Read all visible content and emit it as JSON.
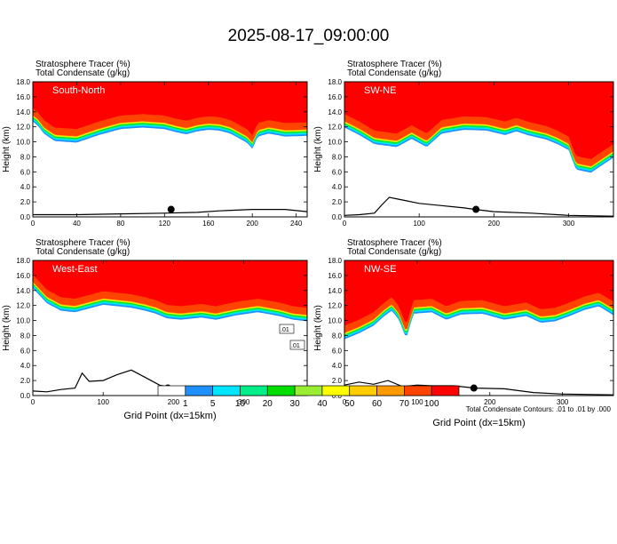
{
  "title": "2025-08-17_09:00:00",
  "colors": {
    "tracer_levels": [
      "#ffffff",
      "#1e90ff",
      "#00e5ff",
      "#00ee88",
      "#00dd00",
      "#99ee33",
      "#ffff00",
      "#ffcc00",
      "#ff9900",
      "#ff4400",
      "#ff0000"
    ],
    "contour": "#000000",
    "panel_label": "#ffffff"
  },
  "colorbar": {
    "labels": [
      "1",
      "5",
      "10",
      "20",
      "30",
      "40",
      "50",
      "60",
      "70",
      "100"
    ]
  },
  "footer": {
    "contour_note": "Total Condensate Contours: .01 to .01 by .000"
  },
  "chart_data": [
    {
      "type": "area",
      "label": "South-North",
      "header": [
        "Stratosphere Tracer   (%)",
        "Total Condensate   (g/kg)"
      ],
      "ylabel": "Height (km)",
      "xlabel": "",
      "xlim": [
        0,
        250
      ],
      "ylim": [
        0,
        18
      ],
      "xticks": [
        0,
        40,
        80,
        120,
        160,
        200,
        240
      ],
      "yticks": [
        "0.0",
        "2.0",
        "4.0",
        "6.0",
        "8.0",
        "10.0",
        "12.0",
        "14.0",
        "16.0",
        "18.0"
      ],
      "tracer_base_km": [
        [
          0,
          13.6
        ],
        [
          5,
          13.0
        ],
        [
          10,
          12.0
        ],
        [
          20,
          11.0
        ],
        [
          40,
          10.8
        ],
        [
          60,
          11.8
        ],
        [
          80,
          12.6
        ],
        [
          100,
          12.8
        ],
        [
          120,
          12.6
        ],
        [
          130,
          12.2
        ],
        [
          140,
          11.9
        ],
        [
          150,
          12.3
        ],
        [
          160,
          12.5
        ],
        [
          170,
          12.4
        ],
        [
          180,
          12.0
        ],
        [
          195,
          10.8
        ],
        [
          200,
          10.0
        ],
        [
          205,
          11.6
        ],
        [
          215,
          12.0
        ],
        [
          230,
          11.6
        ],
        [
          250,
          11.7
        ]
      ],
      "terrain_km": [
        [
          0,
          0.3
        ],
        [
          40,
          0.3
        ],
        [
          80,
          0.4
        ],
        [
          120,
          0.5
        ],
        [
          150,
          0.6
        ],
        [
          170,
          0.8
        ],
        [
          200,
          1.0
        ],
        [
          230,
          1.0
        ],
        [
          250,
          0.7
        ]
      ],
      "marker": {
        "x": 126,
        "y": 1.0
      }
    },
    {
      "type": "area",
      "label": "SW-NE",
      "header": [
        "Stratosphere Tracer   (%)",
        "Total Condensate   (g/kg)"
      ],
      "ylabel": "Height (km)",
      "xlabel": "",
      "xlim": [
        0,
        360
      ],
      "ylim": [
        0,
        18
      ],
      "xticks": [
        0,
        100,
        200,
        300
      ],
      "yticks": [
        "0.0",
        "2.0",
        "4.0",
        "6.0",
        "8.0",
        "10.0",
        "12.0",
        "14.0",
        "16.0",
        "18.0"
      ],
      "tracer_base_km": [
        [
          0,
          12.8
        ],
        [
          20,
          11.8
        ],
        [
          40,
          10.6
        ],
        [
          70,
          10.2
        ],
        [
          90,
          11.3
        ],
        [
          110,
          10.2
        ],
        [
          130,
          12.0
        ],
        [
          160,
          12.5
        ],
        [
          190,
          12.4
        ],
        [
          215,
          11.8
        ],
        [
          230,
          12.3
        ],
        [
          245,
          11.8
        ],
        [
          270,
          11.2
        ],
        [
          285,
          10.6
        ],
        [
          300,
          9.8
        ],
        [
          310,
          7.2
        ],
        [
          330,
          6.8
        ],
        [
          345,
          7.8
        ],
        [
          360,
          8.8
        ]
      ],
      "terrain_km": [
        [
          0,
          0.2
        ],
        [
          20,
          0.3
        ],
        [
          40,
          0.5
        ],
        [
          50,
          1.6
        ],
        [
          60,
          2.6
        ],
        [
          80,
          2.2
        ],
        [
          100,
          1.8
        ],
        [
          130,
          1.5
        ],
        [
          160,
          1.2
        ],
        [
          175,
          1.0
        ],
        [
          200,
          0.7
        ],
        [
          250,
          0.5
        ],
        [
          300,
          0.2
        ],
        [
          360,
          0.1
        ]
      ],
      "marker": {
        "x": 176,
        "y": 1.0
      }
    },
    {
      "type": "area",
      "label": "West-East",
      "header": [
        "Stratosphere Tracer   (%)",
        "Total Condensate   (g/kg)"
      ],
      "ylabel": "Height (km)",
      "xlabel": "Grid Point (dx=15km)",
      "xlim": [
        0,
        390
      ],
      "ylim": [
        0,
        18
      ],
      "xticks": [
        0,
        100,
        200,
        300
      ],
      "yticks": [
        "0.0",
        "2.0",
        "4.0",
        "6.0",
        "8.0",
        "10.0",
        "12.0",
        "14.0",
        "16.0",
        "18.0"
      ],
      "tracer_base_km": [
        [
          0,
          15.2
        ],
        [
          20,
          13.2
        ],
        [
          40,
          12.2
        ],
        [
          60,
          12.0
        ],
        [
          80,
          12.5
        ],
        [
          100,
          13.0
        ],
        [
          120,
          12.8
        ],
        [
          140,
          12.6
        ],
        [
          160,
          12.2
        ],
        [
          175,
          11.8
        ],
        [
          190,
          11.2
        ],
        [
          210,
          11.0
        ],
        [
          240,
          11.3
        ],
        [
          260,
          11.0
        ],
        [
          290,
          11.6
        ],
        [
          320,
          12.0
        ],
        [
          350,
          11.5
        ],
        [
          370,
          11.0
        ],
        [
          390,
          10.8
        ]
      ],
      "terrain_km": [
        [
          0,
          0.6
        ],
        [
          20,
          0.5
        ],
        [
          40,
          0.8
        ],
        [
          60,
          1.0
        ],
        [
          70,
          3.0
        ],
        [
          80,
          1.9
        ],
        [
          100,
          2.0
        ],
        [
          120,
          2.8
        ],
        [
          140,
          3.4
        ],
        [
          160,
          2.4
        ],
        [
          180,
          1.4
        ],
        [
          200,
          1.0
        ],
        [
          230,
          0.7
        ],
        [
          260,
          0.9
        ],
        [
          300,
          0.4
        ],
        [
          340,
          0.2
        ],
        [
          390,
          0.2
        ]
      ],
      "marker": {
        "x": 192,
        "y": 1.0
      },
      "contour_labels": [
        ".01",
        ".01"
      ]
    },
    {
      "type": "area",
      "label": "NW-SE",
      "header": [
        "Stratosphere Tracer   (%)",
        "Total Condensate   (g/kg)"
      ],
      "ylabel": "Height (km)",
      "xlabel": "Grid Point (dx=15km)",
      "xlim": [
        0,
        370
      ],
      "ylim": [
        0,
        18
      ],
      "xticks": [
        0,
        100,
        200,
        300
      ],
      "yticks": [
        "0.0",
        "2.0",
        "4.0",
        "6.0",
        "8.0",
        "10.0",
        "12.0",
        "14.0",
        "16.0",
        "18.0"
      ],
      "tracer_base_km": [
        [
          0,
          8.4
        ],
        [
          20,
          9.2
        ],
        [
          40,
          10.2
        ],
        [
          55,
          11.5
        ],
        [
          65,
          12.2
        ],
        [
          75,
          11.0
        ],
        [
          85,
          8.5
        ],
        [
          95,
          11.8
        ],
        [
          120,
          12.0
        ],
        [
          140,
          11.0
        ],
        [
          160,
          11.7
        ],
        [
          190,
          11.8
        ],
        [
          220,
          11.0
        ],
        [
          250,
          11.5
        ],
        [
          270,
          10.6
        ],
        [
          290,
          10.8
        ],
        [
          310,
          11.5
        ],
        [
          330,
          12.3
        ],
        [
          350,
          12.8
        ],
        [
          370,
          11.6
        ]
      ],
      "terrain_km": [
        [
          0,
          1.4
        ],
        [
          20,
          1.8
        ],
        [
          40,
          1.5
        ],
        [
          60,
          2.0
        ],
        [
          80,
          1.2
        ],
        [
          100,
          1.4
        ],
        [
          120,
          1.3
        ],
        [
          150,
          1.3
        ],
        [
          180,
          1.0
        ],
        [
          220,
          0.9
        ],
        [
          260,
          0.4
        ],
        [
          300,
          0.2
        ],
        [
          370,
          0.1
        ]
      ],
      "marker": {
        "x": 178,
        "y": 1.0
      }
    }
  ]
}
